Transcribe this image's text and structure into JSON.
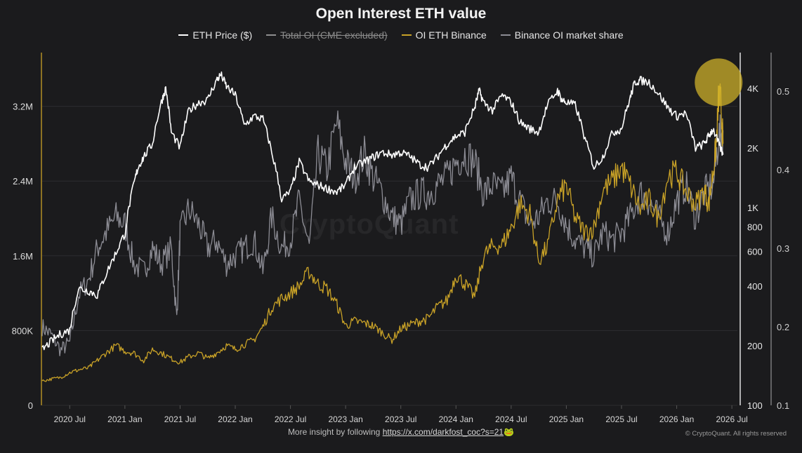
{
  "footer": {
    "text": "More insight by following",
    "link": "https://x.com/darkfost_coc?s=21",
    "emoji": "🐸"
  },
  "copyright": "© CryptoQuant. All rights reserved",
  "watermark": "CryptoQuant",
  "colors": {
    "background": "#1b1b1d",
    "eth_price": "#ffffff",
    "total_oi": "#8f8f8f",
    "oi_binance": "#c9a227",
    "binance_share": "#8c8c94",
    "highlight": "#d4b62a"
  },
  "chart_data": {
    "type": "line",
    "title": "Open Interest ETH value",
    "legend": [
      {
        "name": "ETH Price ($)",
        "color": "#ffffff",
        "visible": true
      },
      {
        "name": "Total OI (CME excluded)",
        "color": "#8f8f8f",
        "visible": false
      },
      {
        "name": "OI ETH Binance",
        "color": "#c9a227",
        "visible": true
      },
      {
        "name": "Binance OI market share",
        "color": "#8c8c94",
        "visible": true
      }
    ],
    "legend_placement": "top-center",
    "x_ticks": [
      "2020 Jul",
      "2021 Jan",
      "2021 Jul",
      "2022 Jan",
      "2022 Jul",
      "2023 Jan",
      "2023 Jul",
      "2024 Jan",
      "2024 Jul",
      "2025 Jan",
      "2025 Jul",
      "2026 Jan",
      "2026 Jul"
    ],
    "x_range": [
      2020.25,
      2026.55
    ],
    "y_left": {
      "label": "OI ETH Binance",
      "ticks": [
        "0",
        "800K",
        "1.6M",
        "2.4M",
        "3.2M"
      ],
      "range": [
        0,
        3700000
      ]
    },
    "y_price": {
      "label": "ETH Price ($)",
      "scale": "log",
      "ticks": [
        "100",
        "200",
        "400",
        "600",
        "800",
        "1K",
        "2K",
        "4K"
      ],
      "range": [
        100,
        5600
      ]
    },
    "y_share": {
      "label": "Binance OI market share",
      "ticks": [
        "0.1",
        "0.2",
        "0.3",
        "0.4",
        "0.5"
      ],
      "range": [
        0.1,
        0.54
      ]
    },
    "grid": true,
    "annotation": {
      "type": "circle",
      "x": 2026.38,
      "price": 4300
    },
    "series": [
      {
        "name": "ETH Price ($)",
        "axis": "y_price",
        "x": [
          2020.25,
          2020.33,
          2020.42,
          2020.5,
          2020.58,
          2020.67,
          2020.75,
          2020.83,
          2020.92,
          2021.0,
          2021.08,
          2021.12,
          2021.17,
          2021.25,
          2021.33,
          2021.37,
          2021.42,
          2021.5,
          2021.58,
          2021.67,
          2021.75,
          2021.83,
          2021.87,
          2021.92,
          2022.0,
          2022.08,
          2022.17,
          2022.25,
          2022.33,
          2022.42,
          2022.5,
          2022.58,
          2022.67,
          2022.75,
          2022.83,
          2022.92,
          2023.0,
          2023.08,
          2023.17,
          2023.25,
          2023.33,
          2023.42,
          2023.5,
          2023.58,
          2023.67,
          2023.75,
          2023.83,
          2023.92,
          2024.0,
          2024.08,
          2024.17,
          2024.21,
          2024.25,
          2024.33,
          2024.42,
          2024.5,
          2024.58,
          2024.67,
          2024.75,
          2024.83,
          2024.92,
          2024.96,
          2025.0,
          2025.08,
          2025.17,
          2025.25,
          2025.33,
          2025.42,
          2025.5,
          2025.58,
          2025.62,
          2025.67,
          2025.75,
          2025.83,
          2025.92,
          2026.0,
          2026.08,
          2026.17,
          2026.25,
          2026.29,
          2026.33,
          2026.38,
          2026.42
        ],
        "values": [
          190,
          210,
          230,
          240,
          390,
          380,
          360,
          460,
          590,
          740,
          1300,
          1600,
          1800,
          2100,
          3400,
          4000,
          2400,
          2000,
          3100,
          3400,
          3500,
          4400,
          4700,
          4100,
          3700,
          2600,
          2900,
          2800,
          1900,
          1100,
          1200,
          1700,
          1350,
          1300,
          1250,
          1200,
          1300,
          1600,
          1700,
          1800,
          1900,
          1850,
          1900,
          1820,
          1650,
          1600,
          1800,
          2100,
          2300,
          2400,
          3200,
          3900,
          3400,
          3100,
          3700,
          3400,
          2700,
          2500,
          2400,
          3300,
          3900,
          3500,
          3400,
          3300,
          2200,
          1600,
          1800,
          2400,
          2500,
          3600,
          4300,
          4400,
          4300,
          3800,
          3200,
          2900,
          3000,
          2000,
          2100,
          2300,
          2500,
          2100,
          1850
        ]
      },
      {
        "name": "OI ETH Binance",
        "axis": "y_left",
        "x": [
          2020.25,
          2020.33,
          2020.42,
          2020.5,
          2020.58,
          2020.67,
          2020.75,
          2020.83,
          2020.92,
          2021.0,
          2021.08,
          2021.17,
          2021.25,
          2021.33,
          2021.42,
          2021.5,
          2021.58,
          2021.67,
          2021.75,
          2021.83,
          2021.92,
          2022.0,
          2022.08,
          2022.17,
          2022.25,
          2022.33,
          2022.42,
          2022.5,
          2022.58,
          2022.67,
          2022.75,
          2022.83,
          2022.92,
          2023.0,
          2023.08,
          2023.17,
          2023.25,
          2023.33,
          2023.42,
          2023.5,
          2023.58,
          2023.67,
          2023.75,
          2023.83,
          2023.92,
          2024.0,
          2024.08,
          2024.17,
          2024.25,
          2024.33,
          2024.42,
          2024.5,
          2024.58,
          2024.67,
          2024.75,
          2024.83,
          2024.92,
          2025.0,
          2025.08,
          2025.17,
          2025.25,
          2025.33,
          2025.42,
          2025.5,
          2025.58,
          2025.67,
          2025.75,
          2025.83,
          2025.92,
          2026.0,
          2026.08,
          2026.17,
          2026.25,
          2026.29,
          2026.33,
          2026.36,
          2026.38,
          2026.4,
          2026.42
        ],
        "values": [
          260000,
          280000,
          300000,
          350000,
          380000,
          400000,
          480000,
          560000,
          640000,
          580000,
          560000,
          480000,
          600000,
          560000,
          500000,
          460000,
          520000,
          560000,
          500000,
          560000,
          640000,
          600000,
          650000,
          700000,
          840000,
          1050000,
          1140000,
          1200000,
          1280000,
          1430000,
          1300000,
          1250000,
          1080000,
          850000,
          900000,
          880000,
          850000,
          780000,
          700000,
          820000,
          860000,
          900000,
          930000,
          1050000,
          1120000,
          1400000,
          1300000,
          1160000,
          1600000,
          1700000,
          1720000,
          1900000,
          2150000,
          2050000,
          1550000,
          1700000,
          2200000,
          2350000,
          2000000,
          1850000,
          1900000,
          2300000,
          2400000,
          2550000,
          2350000,
          2100000,
          2200000,
          2000000,
          2450000,
          2500000,
          2300000,
          2150000,
          2300000,
          2150000,
          2500000,
          2800000,
          3300000,
          3250000,
          2800000
        ]
      },
      {
        "name": "Binance OI market share",
        "axis": "y_share",
        "x": [
          2020.25,
          2020.33,
          2020.42,
          2020.5,
          2020.58,
          2020.67,
          2020.75,
          2020.83,
          2020.92,
          2021.0,
          2021.08,
          2021.17,
          2021.25,
          2021.33,
          2021.42,
          2021.47,
          2021.5,
          2021.58,
          2021.67,
          2021.75,
          2021.83,
          2021.92,
          2022.0,
          2022.08,
          2022.17,
          2022.25,
          2022.33,
          2022.42,
          2022.5,
          2022.58,
          2022.67,
          2022.75,
          2022.83,
          2022.92,
          2023.0,
          2023.08,
          2023.17,
          2023.25,
          2023.33,
          2023.42,
          2023.5,
          2023.58,
          2023.67,
          2023.75,
          2023.83,
          2023.92,
          2024.0,
          2024.08,
          2024.17,
          2024.25,
          2024.33,
          2024.42,
          2024.5,
          2024.58,
          2024.67,
          2024.75,
          2024.83,
          2024.92,
          2025.0,
          2025.08,
          2025.17,
          2025.25,
          2025.33,
          2025.42,
          2025.5,
          2025.58,
          2025.67,
          2025.75,
          2025.83,
          2025.92,
          2026.0,
          2026.08,
          2026.17,
          2026.25,
          2026.33,
          2026.38,
          2026.42
        ],
        "values": [
          0.2,
          0.19,
          0.17,
          0.18,
          0.24,
          0.26,
          0.3,
          0.32,
          0.34,
          0.33,
          0.28,
          0.27,
          0.3,
          0.28,
          0.3,
          0.21,
          0.32,
          0.35,
          0.33,
          0.3,
          0.31,
          0.28,
          0.29,
          0.3,
          0.31,
          0.27,
          0.34,
          0.3,
          0.31,
          0.36,
          0.3,
          0.42,
          0.4,
          0.46,
          0.41,
          0.39,
          0.42,
          0.39,
          0.37,
          0.34,
          0.33,
          0.36,
          0.37,
          0.37,
          0.38,
          0.39,
          0.41,
          0.42,
          0.41,
          0.37,
          0.38,
          0.37,
          0.39,
          0.36,
          0.33,
          0.34,
          0.36,
          0.36,
          0.33,
          0.31,
          0.3,
          0.29,
          0.32,
          0.31,
          0.32,
          0.34,
          0.37,
          0.36,
          0.34,
          0.32,
          0.36,
          0.38,
          0.34,
          0.37,
          0.38,
          0.44,
          0.45
        ]
      }
    ]
  }
}
